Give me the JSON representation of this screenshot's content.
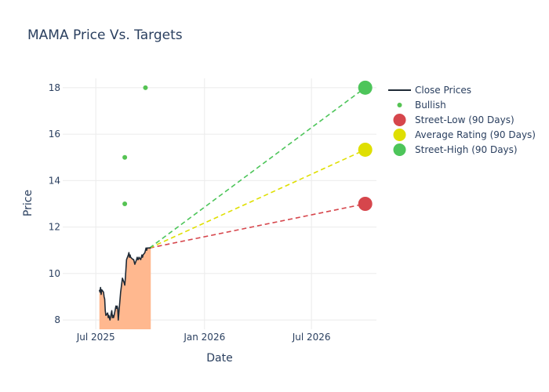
{
  "chart_data": {
    "type": "line",
    "title": "MAMA Price Vs. Targets",
    "xlabel": "Date",
    "ylabel": "Price",
    "xlim": [
      "2025-05-06",
      "2026-10-19"
    ],
    "ylim": [
      7.6,
      18.4
    ],
    "x_ticks": [
      {
        "date": "2025-07-01",
        "label": "Jul 2025"
      },
      {
        "date": "2026-01-01",
        "label": "Jan 2026"
      },
      {
        "date": "2026-07-01",
        "label": "Jul 2026"
      }
    ],
    "y_ticks": [
      8,
      10,
      12,
      14,
      16,
      18
    ],
    "grid": true,
    "legend_position": "top-right",
    "series": [
      {
        "name": "Close Prices",
        "kind": "line",
        "color": "#1f2a36",
        "fill_color": "#ffb88f",
        "x": [
          "2025-07-07",
          "2025-07-08",
          "2025-07-09",
          "2025-07-10",
          "2025-07-11",
          "2025-07-14",
          "2025-07-15",
          "2025-07-16",
          "2025-07-17",
          "2025-07-18",
          "2025-07-21",
          "2025-07-22",
          "2025-07-23",
          "2025-07-24",
          "2025-07-25",
          "2025-07-28",
          "2025-07-29",
          "2025-07-30",
          "2025-07-31",
          "2025-08-01",
          "2025-08-04",
          "2025-08-05",
          "2025-08-06",
          "2025-08-07",
          "2025-08-08",
          "2025-08-11",
          "2025-08-12",
          "2025-08-13",
          "2025-08-14",
          "2025-08-15",
          "2025-08-18",
          "2025-08-19",
          "2025-08-20",
          "2025-08-21",
          "2025-08-22",
          "2025-08-25",
          "2025-08-26",
          "2025-08-27",
          "2025-08-28",
          "2025-08-29",
          "2025-09-02",
          "2025-09-03",
          "2025-09-04",
          "2025-09-05",
          "2025-09-08",
          "2025-09-09",
          "2025-09-10",
          "2025-09-11",
          "2025-09-12",
          "2025-09-15",
          "2025-09-16",
          "2025-09-17",
          "2025-09-18",
          "2025-09-19",
          "2025-09-22",
          "2025-09-23",
          "2025-09-24",
          "2025-09-25",
          "2025-09-26",
          "2025-09-29",
          "2025-09-30",
          "2025-10-01",
          "2025-10-02"
        ],
        "y": [
          9.3,
          9.2,
          9.4,
          9.1,
          9.3,
          9.2,
          9.0,
          8.9,
          8.4,
          8.2,
          8.3,
          8.1,
          8.2,
          8.1,
          8.0,
          8.4,
          8.1,
          8.2,
          8.1,
          8.2,
          8.6,
          8.5,
          8.6,
          8.5,
          8.0,
          8.9,
          9.2,
          9.4,
          9.6,
          9.8,
          9.6,
          9.5,
          9.8,
          10.2,
          10.6,
          10.8,
          10.9,
          10.7,
          10.8,
          10.7,
          10.6,
          10.6,
          10.5,
          10.4,
          10.6,
          10.7,
          10.6,
          10.6,
          10.7,
          10.6,
          10.7,
          10.8,
          10.7,
          10.8,
          10.9,
          11.0,
          11.1,
          11.0,
          11.1,
          11.1,
          11.1,
          11.1,
          11.1
        ]
      },
      {
        "name": "Bullish",
        "kind": "scatter",
        "color": "#55c353",
        "x": [
          "2025-08-19",
          "2025-08-19",
          "2025-09-23"
        ],
        "y": [
          13.0,
          15.0,
          18.0
        ]
      },
      {
        "name": "Street-Low (90 Days)",
        "kind": "target",
        "color": "#d6464c",
        "x": [
          "2025-09-30",
          "2026-09-30"
        ],
        "y": [
          11.1,
          13.0
        ]
      },
      {
        "name": "Average Rating (90 Days)",
        "kind": "target",
        "color": "#dfdf02",
        "x": [
          "2025-09-30",
          "2026-09-30"
        ],
        "y": [
          11.1,
          15.33
        ]
      },
      {
        "name": "Street-High (90 Days)",
        "kind": "target",
        "color": "#4dc55a",
        "x": [
          "2025-09-30",
          "2026-09-30"
        ],
        "y": [
          11.1,
          18.0
        ]
      }
    ]
  }
}
